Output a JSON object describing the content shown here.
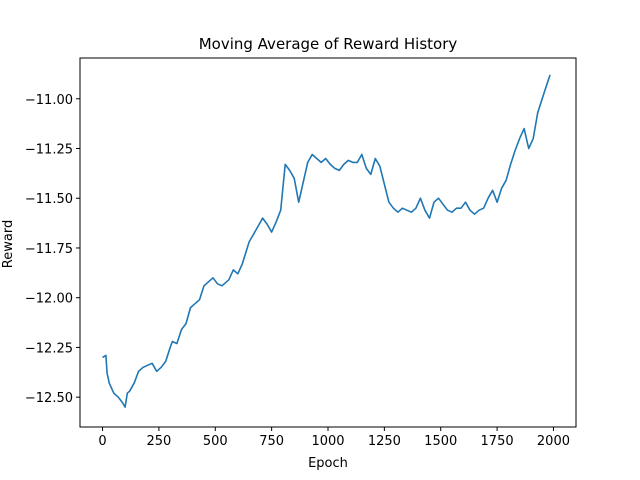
{
  "chart_data": {
    "type": "line",
    "title": "Moving Average of Reward History",
    "xlabel": "Epoch",
    "ylabel": "Reward",
    "xlim": [
      -100,
      2100
    ],
    "ylim": [
      -12.65,
      -10.795
    ],
    "xticks": [
      0,
      250,
      500,
      750,
      1000,
      1250,
      1500,
      1750,
      2000
    ],
    "xtick_labels": [
      "0",
      "250",
      "500",
      "750",
      "1000",
      "1250",
      "1500",
      "1750",
      "2000"
    ],
    "yticks": [
      -11.0,
      -11.25,
      -11.5,
      -11.75,
      -12.0,
      -12.25,
      -12.5
    ],
    "ytick_labels": [
      "−11.00",
      "−11.25",
      "−11.50",
      "−11.75",
      "−12.00",
      "−12.25",
      "−12.50"
    ],
    "grid": false,
    "series": [
      {
        "color": "#1f77b4",
        "x": [
          0,
          15,
          20,
          30,
          50,
          70,
          90,
          100,
          110,
          120,
          140,
          160,
          180,
          200,
          220,
          240,
          260,
          280,
          300,
          310,
          330,
          350,
          370,
          390,
          410,
          430,
          450,
          470,
          490,
          510,
          530,
          560,
          580,
          600,
          620,
          650,
          680,
          710,
          730,
          750,
          770,
          790,
          810,
          830,
          850,
          870,
          890,
          910,
          930,
          950,
          970,
          990,
          1010,
          1030,
          1050,
          1070,
          1090,
          1110,
          1130,
          1150,
          1170,
          1190,
          1210,
          1230,
          1250,
          1270,
          1290,
          1310,
          1330,
          1350,
          1370,
          1390,
          1410,
          1430,
          1450,
          1470,
          1490,
          1510,
          1530,
          1550,
          1570,
          1590,
          1610,
          1630,
          1650,
          1670,
          1690,
          1710,
          1730,
          1750,
          1770,
          1790,
          1810,
          1830,
          1850,
          1870,
          1890,
          1910,
          1930,
          1950,
          1970,
          1985
        ],
        "y": [
          -12.3,
          -12.29,
          -12.38,
          -12.43,
          -12.48,
          -12.5,
          -12.53,
          -12.55,
          -12.48,
          -12.47,
          -12.43,
          -12.37,
          -12.35,
          -12.34,
          -12.33,
          -12.37,
          -12.35,
          -12.32,
          -12.25,
          -12.22,
          -12.23,
          -12.16,
          -12.13,
          -12.05,
          -12.03,
          -12.01,
          -11.94,
          -11.92,
          -11.9,
          -11.93,
          -11.94,
          -11.91,
          -11.86,
          -11.88,
          -11.83,
          -11.72,
          -11.66,
          -11.6,
          -11.63,
          -11.67,
          -11.62,
          -11.56,
          -11.33,
          -11.36,
          -11.4,
          -11.52,
          -11.42,
          -11.32,
          -11.28,
          -11.3,
          -11.32,
          -11.3,
          -11.33,
          -11.35,
          -11.36,
          -11.33,
          -11.31,
          -11.32,
          -11.32,
          -11.28,
          -11.35,
          -11.38,
          -11.3,
          -11.34,
          -11.43,
          -11.52,
          -11.55,
          -11.57,
          -11.55,
          -11.56,
          -11.57,
          -11.55,
          -11.5,
          -11.56,
          -11.6,
          -11.52,
          -11.5,
          -11.53,
          -11.56,
          -11.57,
          -11.55,
          -11.55,
          -11.52,
          -11.56,
          -11.58,
          -11.56,
          -11.55,
          -11.5,
          -11.46,
          -11.52,
          -11.45,
          -11.41,
          -11.33,
          -11.26,
          -11.2,
          -11.15,
          -11.25,
          -11.2,
          -11.07,
          -11.0,
          -10.93,
          -10.88
        ]
      }
    ]
  }
}
